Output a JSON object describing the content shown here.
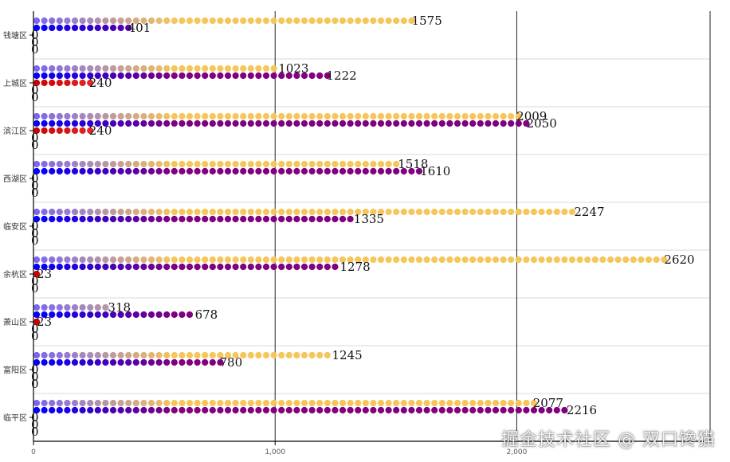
{
  "chart_data": {
    "type": "bar",
    "orientation": "horizontal",
    "style": "dot-bars",
    "categories": [
      "钱塘区",
      "上城区",
      "滨江区",
      "西湖区",
      "临安区",
      "余杭区",
      "萧山区",
      "富阳区",
      "临平区"
    ],
    "series": [
      {
        "color": "#f5c65a",
        "gradient_start": "#7b68ee",
        "values": [
          1575,
          1023,
          2009,
          1518,
          2247,
          2620,
          318,
          1245,
          2077
        ]
      },
      {
        "color": "#800080",
        "gradient_start": "#0000ff",
        "values": [
          401,
          1222,
          2050,
          1610,
          1335,
          1278,
          678,
          780,
          2216
        ]
      },
      {
        "color": "#ff6666",
        "gradient_start": "#cc0000",
        "values": [
          0,
          240,
          240,
          0,
          0,
          23,
          23,
          0,
          0
        ]
      },
      {
        "color": "#888888",
        "values": [
          0,
          0,
          0,
          0,
          0,
          0,
          0,
          0,
          0
        ]
      },
      {
        "color": "#888888",
        "values": [
          0,
          0,
          0,
          0,
          0,
          0,
          0,
          0,
          0
        ]
      }
    ],
    "xlim": [
      0,
      2800
    ],
    "x_ticks": [
      "0",
      "1,000",
      "2,000"
    ],
    "x_tick_values": [
      0,
      1000,
      2000
    ],
    "grid": true,
    "legend": "none"
  },
  "watermark": "掘金技术社区 @ 双口馋猫"
}
